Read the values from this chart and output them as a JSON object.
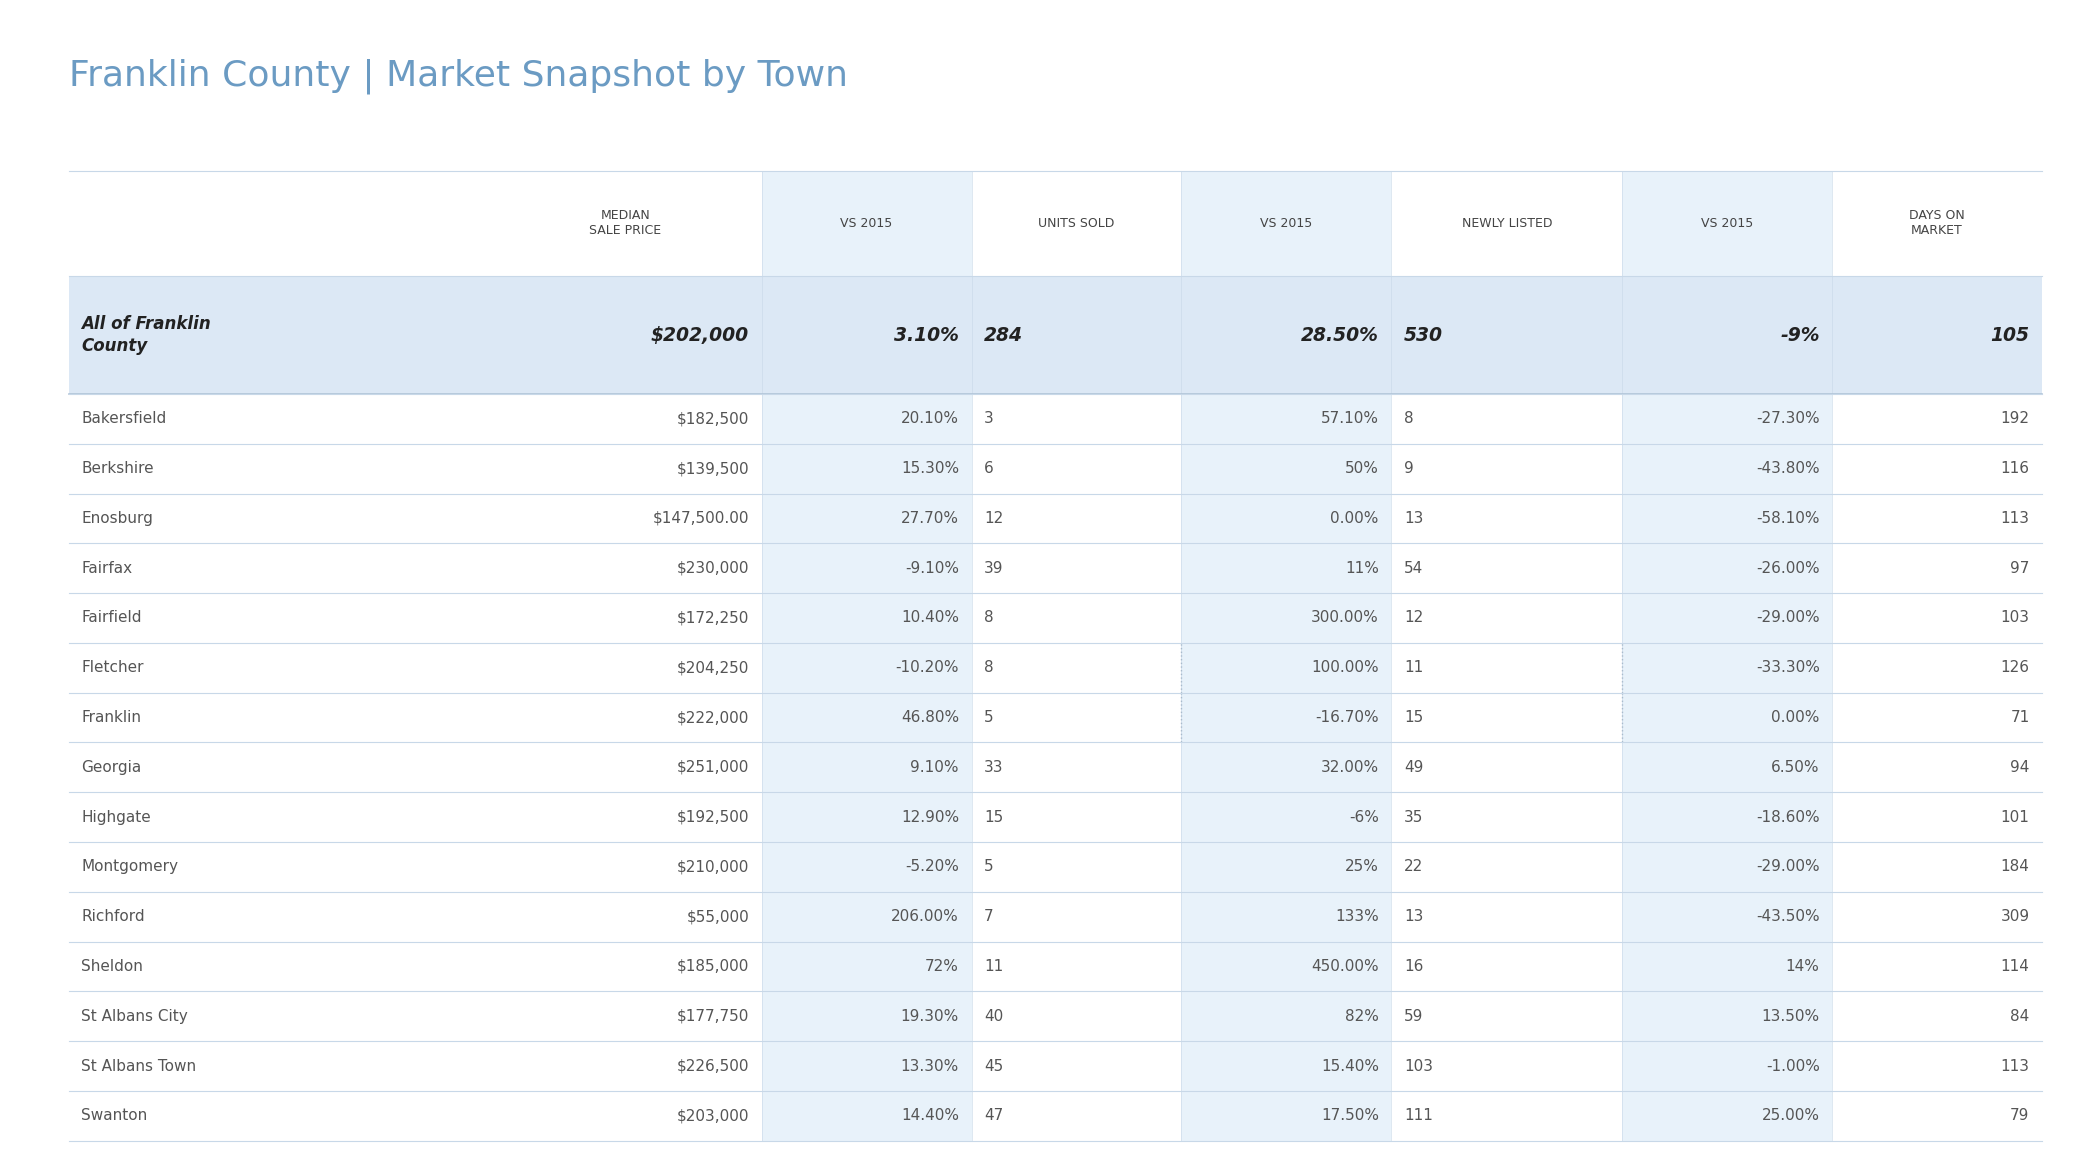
{
  "title": "Franklin County | Market Snapshot by Town",
  "title_color": "#6b9bc3",
  "background_color": "#ffffff",
  "header_row": [
    "",
    "MEDIAN\nSALE PRICE",
    "VS 2015",
    "UNITS SOLD",
    "VS 2015",
    "NEWLY LISTED",
    "VS 2015",
    "DAYS ON\nMARKET"
  ],
  "summary_row": [
    "All of Franklin\nCounty",
    "$202,000",
    "3.10%",
    "284",
    "28.50%",
    "530",
    "-9%",
    "105"
  ],
  "summary_bg": "#dce8f5",
  "shaded_col_bg": "#e8f2fa",
  "rows": [
    [
      "Bakersfield",
      "$182,500",
      "20.10%",
      "3",
      "57.10%",
      "8",
      "-27.30%",
      "192"
    ],
    [
      "Berkshire",
      "$139,500",
      "15.30%",
      "6",
      "50%",
      "9",
      "-43.80%",
      "116"
    ],
    [
      "Enosburg",
      "$147,500.00",
      "27.70%",
      "12",
      "0.00%",
      "13",
      "-58.10%",
      "113"
    ],
    [
      "Fairfax",
      "$230,000",
      "-9.10%",
      "39",
      "11%",
      "54",
      "-26.00%",
      "97"
    ],
    [
      "Fairfield",
      "$172,250",
      "10.40%",
      "8",
      "300.00%",
      "12",
      "-29.00%",
      "103"
    ],
    [
      "Fletcher",
      "$204,250",
      "-10.20%",
      "8",
      "100.00%",
      "11",
      "-33.30%",
      "126"
    ],
    [
      "Franklin",
      "$222,000",
      "46.80%",
      "5",
      "-16.70%",
      "15",
      "0.00%",
      "71"
    ],
    [
      "Georgia",
      "$251,000",
      "9.10%",
      "33",
      "32.00%",
      "49",
      "6.50%",
      "94"
    ],
    [
      "Highgate",
      "$192,500",
      "12.90%",
      "15",
      "-6%",
      "35",
      "-18.60%",
      "101"
    ],
    [
      "Montgomery",
      "$210,000",
      "-5.20%",
      "5",
      "25%",
      "22",
      "-29.00%",
      "184"
    ],
    [
      "Richford",
      "$55,000",
      "206.00%",
      "7",
      "133%",
      "13",
      "-43.50%",
      "309"
    ],
    [
      "Sheldon",
      "$185,000",
      "72%",
      "11",
      "450.00%",
      "16",
      "14%",
      "114"
    ],
    [
      "St Albans City",
      "$177,750",
      "19.30%",
      "40",
      "82%",
      "59",
      "13.50%",
      "84"
    ],
    [
      "St Albans Town",
      "$226,500",
      "13.30%",
      "45",
      "15.40%",
      "103",
      "-1.00%",
      "113"
    ],
    [
      "Swanton",
      "$203,000",
      "14.40%",
      "47",
      "17.50%",
      "111",
      "25.00%",
      "79"
    ]
  ],
  "col_aligns": [
    "left",
    "right",
    "right",
    "left",
    "right",
    "left",
    "right",
    "right"
  ],
  "shaded_cols": [
    2,
    4,
    6
  ],
  "col_widths_raw": [
    2.0,
    1.3,
    1.0,
    1.0,
    1.0,
    1.1,
    1.0,
    1.0
  ],
  "figsize": [
    20.88,
    11.76
  ],
  "dpi": 100
}
